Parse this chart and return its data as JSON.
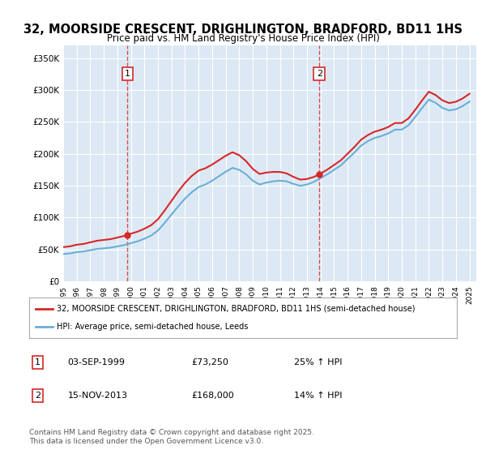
{
  "title": "32, MOORSIDE CRESCENT, DRIGHLINGTON, BRADFORD, BD11 1HS",
  "subtitle": "Price paid vs. HM Land Registry's House Price Index (HPI)",
  "ylabel": "",
  "background_color": "#dce9f5",
  "plot_bg_color": "#dce9f5",
  "fig_bg_color": "#ffffff",
  "sale1_date": "1999-09-03",
  "sale1_price": 73250,
  "sale1_label": "1",
  "sale2_date": "2013-11-15",
  "sale2_price": 168000,
  "sale2_label": "2",
  "legend_line1": "32, MOORSIDE CRESCENT, DRIGHLINGTON, BRADFORD, BD11 1HS (semi-detached house)",
  "legend_line2": "HPI: Average price, semi-detached house, Leeds",
  "note1_label": "1",
  "note1_date": "03-SEP-1999",
  "note1_price": "£73,250",
  "note1_hpi": "25% ↑ HPI",
  "note2_label": "2",
  "note2_date": "15-NOV-2013",
  "note2_price": "£168,000",
  "note2_hpi": "14% ↑ HPI",
  "footer": "Contains HM Land Registry data © Crown copyright and database right 2025.\nThis data is licensed under the Open Government Licence v3.0.",
  "ylim": [
    0,
    370000
  ],
  "yticks": [
    0,
    50000,
    100000,
    150000,
    200000,
    250000,
    300000,
    350000
  ],
  "hpi_color": "#6baed6",
  "price_color": "#d62728",
  "vline_color": "#d62728",
  "marker_color": "#d62728"
}
